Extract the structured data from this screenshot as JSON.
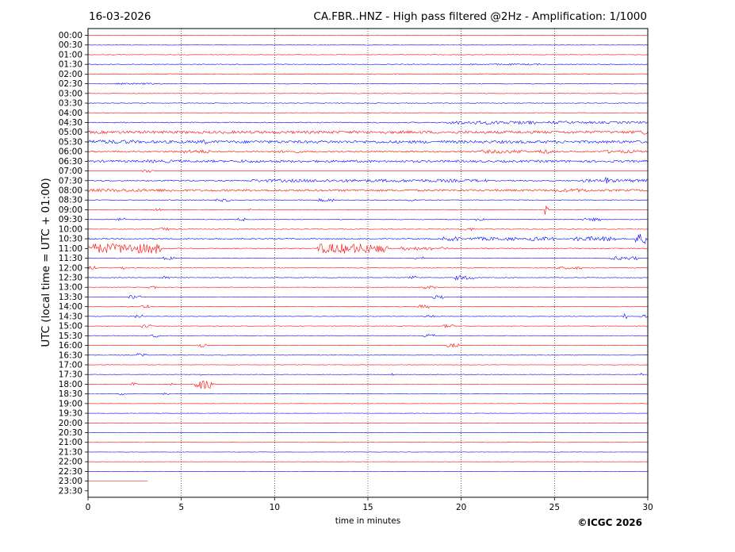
{
  "header": {
    "date": "16-03-2026",
    "title": "CA.FBR..HNZ - High pass filtered @2Hz - Amplification: 1/1000"
  },
  "footer": {
    "copyright": "©ICGC 2026"
  },
  "colors": {
    "odd_trace": "#ff0000",
    "even_trace": "#0000ff",
    "grid": "#000000",
    "background": "#ffffff"
  },
  "chart_data": {
    "type": "line",
    "title": "CA.FBR..HNZ - High pass filtered @2Hz - Amplification: 1/1000",
    "xlabel": "time in minutes",
    "ylabel": "UTC (local time = UTC + 01:00)",
    "xlim": [
      0,
      30
    ],
    "x_ticks": [
      0,
      5,
      10,
      15,
      20,
      25,
      30
    ],
    "grid": "vertical dotted lines at each x tick",
    "row_labels": [
      "00:00",
      "00:30",
      "01:00",
      "01:30",
      "02:00",
      "02:30",
      "03:00",
      "03:30",
      "04:00",
      "04:30",
      "05:00",
      "05:30",
      "06:00",
      "06:30",
      "07:00",
      "07:30",
      "08:00",
      "08:30",
      "09:00",
      "09:30",
      "10:00",
      "10:30",
      "11:00",
      "11:30",
      "12:00",
      "12:30",
      "13:00",
      "13:30",
      "14:00",
      "14:30",
      "15:00",
      "15:30",
      "16:00",
      "16:30",
      "17:00",
      "17:30",
      "18:00",
      "18:30",
      "19:00",
      "19:30",
      "20:00",
      "20:30",
      "21:00",
      "21:30",
      "22:00",
      "22:30",
      "23:00",
      "23:30"
    ],
    "trace_colors": [
      "red",
      "blue"
    ],
    "series": [
      {
        "row": 0,
        "level": 0.05,
        "bursts": []
      },
      {
        "row": 1,
        "level": 0.05,
        "bursts": []
      },
      {
        "row": 2,
        "level": 0.05,
        "bursts": []
      },
      {
        "row": 3,
        "level": 0.07,
        "bursts": [
          [
            20.5,
            24.5,
            0.15
          ]
        ]
      },
      {
        "row": 4,
        "level": 0.08,
        "bursts": []
      },
      {
        "row": 5,
        "level": 0.07,
        "bursts": [
          [
            1.5,
            4,
            0.15
          ]
        ]
      },
      {
        "row": 6,
        "level": 0.05,
        "bursts": []
      },
      {
        "row": 7,
        "level": 0.06,
        "bursts": []
      },
      {
        "row": 8,
        "level": 0.05,
        "bursts": []
      },
      {
        "row": 9,
        "level": 0.1,
        "bursts": [
          [
            19.2,
            24,
            0.35
          ],
          [
            24.7,
            26,
            0.3
          ],
          [
            26,
            30,
            0.22
          ]
        ]
      },
      {
        "row": 10,
        "level": 0.28,
        "bursts": [
          [
            29.5,
            30,
            0.5
          ]
        ]
      },
      {
        "row": 11,
        "level": 0.28,
        "bursts": [
          [
            0,
            2.5,
            0.4
          ],
          [
            6.1,
            6.3,
            0.8
          ]
        ]
      },
      {
        "row": 12,
        "level": 0.15,
        "bursts": [
          [
            5,
            6.5,
            0.35
          ],
          [
            10,
            11.5,
            0.25
          ],
          [
            21,
            23.5,
            0.35
          ],
          [
            24,
            25,
            0.4
          ],
          [
            27.5,
            29.5,
            0.3
          ]
        ]
      },
      {
        "row": 13,
        "level": 0.22,
        "bursts": [
          [
            3,
            5,
            0.3
          ],
          [
            8,
            9,
            0.3
          ]
        ]
      },
      {
        "row": 14,
        "level": 0,
        "bursts": [
          [
            2.8,
            3.5,
            0.35
          ]
        ]
      },
      {
        "row": 15,
        "level": 0.12,
        "bursts": [
          [
            8.5,
            21.5,
            0.3
          ],
          [
            26.5,
            30,
            0.3
          ],
          [
            27.7,
            27.9,
            0.8
          ]
        ]
      },
      {
        "row": 16,
        "level": 0.2,
        "bursts": [
          [
            0,
            4.5,
            0.3
          ],
          [
            25,
            27,
            0.35
          ]
        ]
      },
      {
        "row": 17,
        "level": 0.07,
        "bursts": [
          [
            6.8,
            7.6,
            0.3
          ],
          [
            12.3,
            13.2,
            0.3
          ],
          [
            17.2,
            17.7,
            0.25
          ]
        ]
      },
      {
        "row": 18,
        "level": 0.06,
        "bursts": [
          [
            24.5,
            24.7,
            1.0
          ],
          [
            3.5,
            3.9,
            0.3
          ],
          [
            8.5,
            8.7,
            0.3
          ]
        ]
      },
      {
        "row": 19,
        "level": 0.07,
        "bursts": [
          [
            1.5,
            2.0,
            0.3
          ],
          [
            8,
            8.4,
            0.3
          ],
          [
            20.8,
            21.5,
            0.3
          ],
          [
            26.5,
            27.5,
            0.3
          ]
        ]
      },
      {
        "row": 20,
        "level": 0.06,
        "bursts": [
          [
            3.7,
            4.3,
            0.3
          ],
          [
            20.2,
            20.8,
            0.3
          ]
        ]
      },
      {
        "row": 21,
        "level": 0.12,
        "bursts": [
          [
            19,
            20,
            0.45
          ],
          [
            20.5,
            23,
            0.35
          ],
          [
            23.5,
            25,
            0.4
          ],
          [
            26,
            28,
            0.45
          ],
          [
            28,
            28.3,
            0.7
          ],
          [
            29.3,
            30,
            1.0
          ]
        ]
      },
      {
        "row": 22,
        "level": 0.1,
        "bursts": [
          [
            0,
            3.9,
            1.0
          ],
          [
            12.3,
            15.2,
            1.0
          ],
          [
            15.3,
            16.1,
            0.8
          ],
          [
            16.8,
            18.5,
            0.35
          ],
          [
            18.9,
            19.3,
            0.35
          ]
        ]
      },
      {
        "row": 23,
        "level": 0.06,
        "bursts": [
          [
            4,
            4.6,
            0.3
          ],
          [
            17.5,
            18,
            0.3
          ],
          [
            28,
            29.5,
            0.35
          ]
        ]
      },
      {
        "row": 24,
        "level": 0.06,
        "bursts": [
          [
            0,
            0.5,
            0.35
          ],
          [
            1.5,
            2,
            0.3
          ],
          [
            25,
            26.5,
            0.25
          ]
        ]
      },
      {
        "row": 25,
        "level": 0.06,
        "bursts": [
          [
            3.8,
            4.4,
            0.35
          ],
          [
            17.2,
            17.6,
            0.4
          ],
          [
            19.7,
            20.8,
            0.45
          ]
        ]
      },
      {
        "row": 26,
        "level": 0.05,
        "bursts": [
          [
            3.2,
            3.7,
            0.3
          ],
          [
            18,
            18.7,
            0.3
          ]
        ]
      },
      {
        "row": 27,
        "level": 0.05,
        "bursts": [
          [
            2.2,
            2.8,
            0.35
          ],
          [
            18.5,
            19.1,
            0.35
          ]
        ]
      },
      {
        "row": 28,
        "level": 0.05,
        "bursts": [
          [
            2.8,
            3.3,
            0.35
          ],
          [
            17.7,
            18.3,
            0.35
          ]
        ]
      },
      {
        "row": 29,
        "level": 0.05,
        "bursts": [
          [
            2.5,
            3,
            0.3
          ],
          [
            18,
            18.6,
            0.3
          ],
          [
            28.7,
            28.9,
            0.5
          ],
          [
            29.6,
            30,
            0.3
          ]
        ]
      },
      {
        "row": 30,
        "level": 0.05,
        "bursts": [
          [
            2.8,
            3.4,
            0.3
          ],
          [
            19,
            19.6,
            0.3
          ]
        ]
      },
      {
        "row": 31,
        "level": 0.05,
        "bursts": [
          [
            3.3,
            3.8,
            0.3
          ],
          [
            18,
            18.6,
            0.3
          ]
        ]
      },
      {
        "row": 32,
        "level": 0.05,
        "bursts": [
          [
            5.8,
            6.4,
            0.35
          ],
          [
            19.2,
            19.9,
            0.35
          ]
        ]
      },
      {
        "row": 33,
        "level": 0.05,
        "bursts": [
          [
            2.6,
            3.1,
            0.35
          ]
        ]
      },
      {
        "row": 34,
        "level": 0.04,
        "bursts": []
      },
      {
        "row": 35,
        "level": 0.04,
        "bursts": [
          [
            6,
            6.4,
            0.25
          ],
          [
            16.2,
            16.4,
            0.3
          ],
          [
            29.5,
            29.8,
            0.3
          ]
        ]
      },
      {
        "row": 36,
        "level": 0.04,
        "bursts": [
          [
            2.3,
            2.6,
            0.3
          ],
          [
            4.4,
            4.6,
            0.3
          ],
          [
            5.7,
            6.7,
            1.0
          ]
        ]
      },
      {
        "row": 37,
        "level": 0.04,
        "bursts": [
          [
            1.7,
            2.1,
            0.2
          ],
          [
            4,
            4.3,
            0.2
          ]
        ]
      },
      {
        "row": 38,
        "level": 0.03,
        "bursts": []
      },
      {
        "row": 39,
        "level": 0.03,
        "bursts": []
      },
      {
        "row": 40,
        "level": 0.03,
        "bursts": []
      },
      {
        "row": 41,
        "level": 0.03,
        "bursts": []
      },
      {
        "row": 42,
        "level": 0.03,
        "bursts": []
      },
      {
        "row": 43,
        "level": 0.03,
        "bursts": []
      },
      {
        "row": 44,
        "level": 0.03,
        "bursts": []
      },
      {
        "row": 45,
        "level": 0.03,
        "bursts": []
      },
      {
        "row": 46,
        "level": 0,
        "bursts": [],
        "end_minute": 3.2
      },
      {
        "row": 47,
        "level": 0,
        "bursts": [],
        "end_minute": 0
      }
    ]
  }
}
